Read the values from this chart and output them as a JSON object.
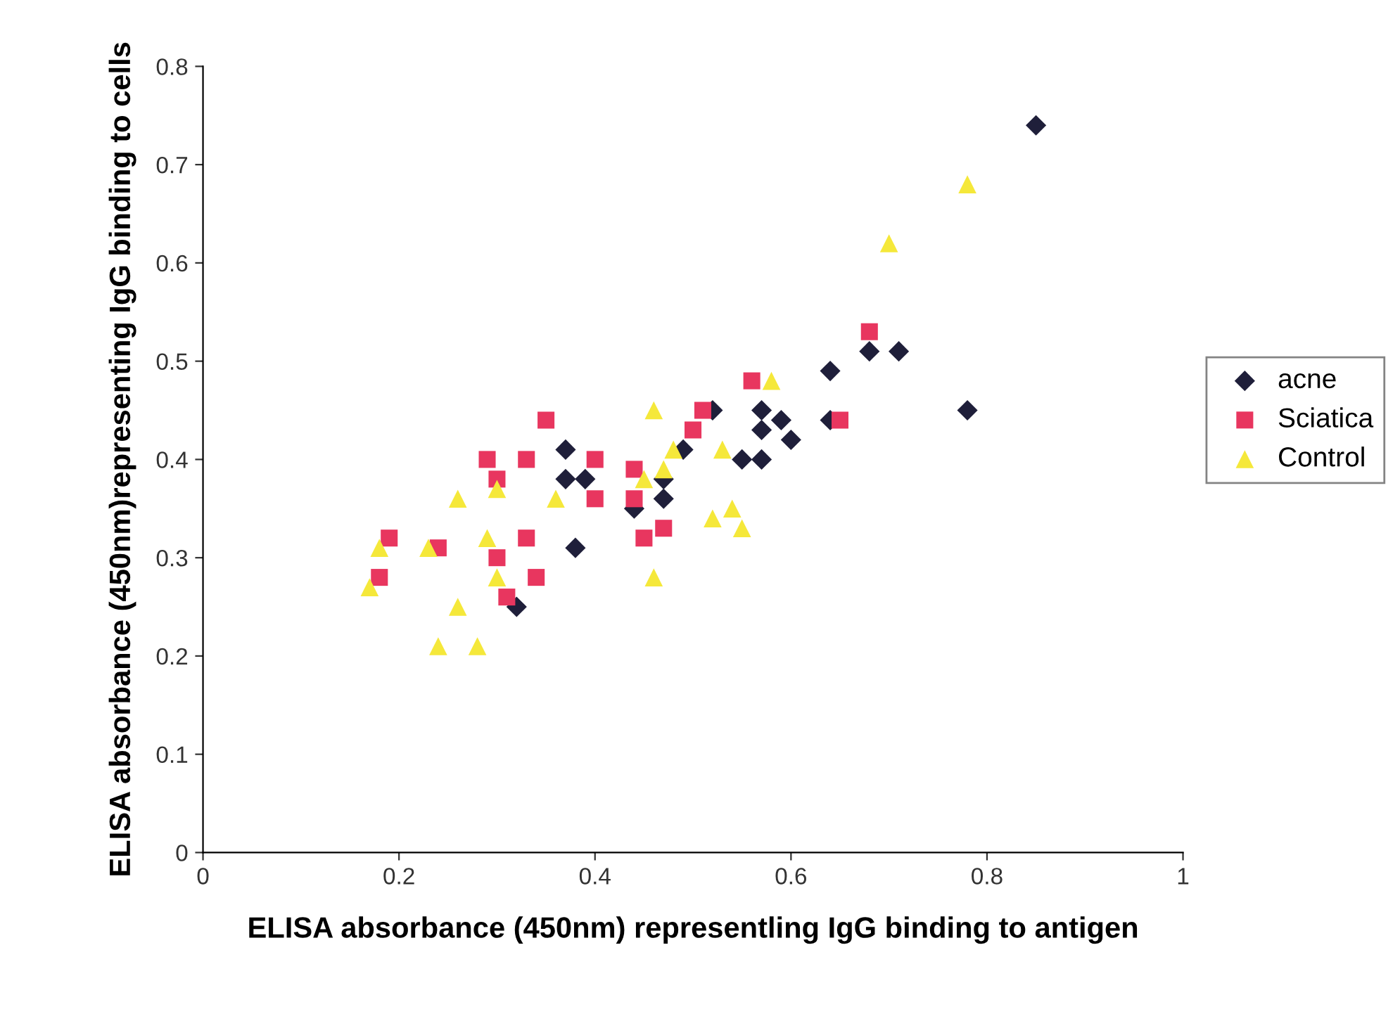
{
  "chart_data": {
    "type": "scatter",
    "xlabel": "ELISA absorbance (450nm) representling IgG binding to antigen",
    "ylabel": "ELISA absorbance (450nm)representing IgG binding to cells",
    "xlim": [
      0,
      1
    ],
    "xticks": [
      0,
      0.2,
      0.4,
      0.6,
      0.8,
      1
    ],
    "ylim": [
      0,
      0.8
    ],
    "yticks": [
      0,
      0.1,
      0.2,
      0.3,
      0.4,
      0.5,
      0.6,
      0.7,
      0.8
    ],
    "grid": false,
    "legend": "right",
    "series": [
      {
        "name": "acne",
        "color": "#1f1f3a",
        "marker": "diamond",
        "x": [
          0.85,
          0.68,
          0.71,
          0.78,
          0.64,
          0.64,
          0.57,
          0.59,
          0.57,
          0.6,
          0.55,
          0.57,
          0.52,
          0.49,
          0.47,
          0.47,
          0.44,
          0.37,
          0.37,
          0.39,
          0.38,
          0.32
        ],
        "values": [
          0.74,
          0.51,
          0.51,
          0.45,
          0.49,
          0.44,
          0.45,
          0.44,
          0.43,
          0.42,
          0.4,
          0.4,
          0.45,
          0.41,
          0.38,
          0.36,
          0.35,
          0.41,
          0.38,
          0.38,
          0.31,
          0.25
        ]
      },
      {
        "name": "Sciatica",
        "color": "#e8365f",
        "marker": "square",
        "x": [
          0.29,
          0.33,
          0.4,
          0.4,
          0.3,
          0.19,
          0.24,
          0.33,
          0.3,
          0.18,
          0.34,
          0.31,
          0.56,
          0.51,
          0.5,
          0.65,
          0.44,
          0.45,
          0.47,
          0.44,
          0.68,
          0.35
        ],
        "values": [
          0.4,
          0.4,
          0.4,
          0.36,
          0.38,
          0.32,
          0.31,
          0.32,
          0.3,
          0.28,
          0.28,
          0.26,
          0.48,
          0.45,
          0.43,
          0.44,
          0.39,
          0.32,
          0.33,
          0.36,
          0.53,
          0.44
        ]
      },
      {
        "name": "Control",
        "color": "#f5e83a",
        "marker": "triangle",
        "x": [
          0.3,
          0.26,
          0.36,
          0.18,
          0.23,
          0.29,
          0.3,
          0.26,
          0.24,
          0.28,
          0.17,
          0.58,
          0.46,
          0.53,
          0.48,
          0.45,
          0.47,
          0.52,
          0.54,
          0.55,
          0.46,
          0.78,
          0.7
        ],
        "values": [
          0.37,
          0.36,
          0.36,
          0.31,
          0.31,
          0.32,
          0.28,
          0.25,
          0.21,
          0.21,
          0.27,
          0.48,
          0.45,
          0.41,
          0.41,
          0.38,
          0.39,
          0.34,
          0.35,
          0.33,
          0.28,
          0.68,
          0.62
        ]
      }
    ]
  }
}
